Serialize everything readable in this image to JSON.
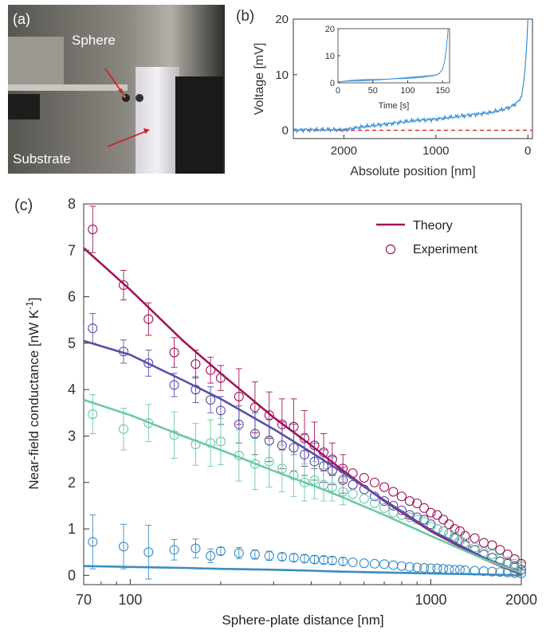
{
  "panel_a": {
    "label": "(a)",
    "sphere_label": "Sphere",
    "substrate_label": "Substrate"
  },
  "panel_b": {
    "label": "(b)",
    "xlabel": "Absolute position [nm]",
    "ylabel": "Voltage [mV]",
    "x_ticks": [
      "2000",
      "1000",
      "0"
    ],
    "y_ticks": [
      "0",
      "10",
      "20"
    ],
    "inset_xlabel": "Time [s]",
    "inset_x_ticks": [
      "0",
      "50",
      "100",
      "150"
    ],
    "inset_y_ticks": [
      "0",
      "10",
      "20"
    ],
    "trace_color": "#3a8fd0",
    "baseline_color": "#d4242e"
  },
  "panel_c": {
    "label": "(c)",
    "xlabel": "Sphere-plate distance [nm]",
    "ylabel": "Near-field conductance [nW K",
    "ylabel_sup": "-1",
    "ylabel_end": "]",
    "x_ticks": [
      "70",
      "100",
      "1000",
      "2000"
    ],
    "y_ticks": [
      "0",
      "1",
      "2",
      "3",
      "4",
      "5",
      "6",
      "7",
      "8"
    ],
    "legend_theory": "Theory",
    "legend_experiment": "Experiment"
  },
  "chart_data": [
    {
      "type": "line",
      "panel": "b",
      "xlabel": "Absolute position [nm]",
      "ylabel": "Voltage [mV]",
      "xlim": [
        2550,
        -50
      ],
      "ylim": [
        -1.5,
        20
      ],
      "x": [
        2550,
        2400,
        2200,
        2000,
        1800,
        1600,
        1400,
        1200,
        1000,
        800,
        600,
        400,
        300,
        200,
        150,
        100,
        70,
        50,
        30,
        10,
        0
      ],
      "y": [
        0,
        0.1,
        0.1,
        0.1,
        0.6,
        1.0,
        1.4,
        1.8,
        2.0,
        2.4,
        2.8,
        3.2,
        3.6,
        4.1,
        4.6,
        5.2,
        6.2,
        8.0,
        11,
        16,
        20
      ],
      "baseline": 0,
      "inset": {
        "xlabel": "Time [s]",
        "xlim": [
          0,
          160
        ],
        "ylim": [
          0,
          20
        ],
        "x": [
          0,
          10,
          20,
          40,
          60,
          80,
          100,
          120,
          140,
          145,
          150,
          153,
          156,
          158
        ],
        "y": [
          0.3,
          0.6,
          0.8,
          1.0,
          1.2,
          1.5,
          1.8,
          2.2,
          2.8,
          3.4,
          5.0,
          8.0,
          14.0,
          20.0
        ]
      }
    },
    {
      "type": "scatter",
      "panel": "c",
      "xlabel": "Sphere-plate distance [nm]",
      "ylabel": "Near-field conductance [nW K-1]",
      "x_scale": "log",
      "xlim": [
        70,
        2000
      ],
      "ylim": [
        -0.2,
        8
      ],
      "series": [
        {
          "name": "Theory",
          "color": "#a0155a",
          "theory_x": [
            70,
            100,
            150,
            200,
            300,
            400,
            500,
            700,
            1000,
            1500,
            2000
          ],
          "theory_y": [
            7.05,
            6.15,
            5.05,
            4.35,
            3.4,
            2.8,
            2.3,
            1.6,
            0.95,
            0.35,
            0.02
          ],
          "exp_x": [
            75,
            95,
            115,
            140,
            165,
            185,
            200,
            230,
            260,
            290,
            320,
            350,
            380,
            410,
            440,
            470,
            510,
            550,
            600,
            650,
            700,
            750,
            800,
            850,
            900,
            950,
            1000,
            1050,
            1100,
            1150,
            1200,
            1250,
            1300,
            1400,
            1500,
            1600,
            1700,
            1800,
            1900,
            2000
          ],
          "exp_y": [
            7.45,
            6.25,
            5.52,
            4.8,
            4.55,
            4.42,
            4.25,
            3.85,
            3.62,
            3.45,
            3.25,
            3.2,
            2.95,
            2.8,
            2.65,
            2.5,
            2.3,
            2.2,
            2.1,
            2.0,
            1.9,
            1.8,
            1.7,
            1.6,
            1.55,
            1.45,
            1.35,
            1.3,
            1.2,
            1.1,
            1.0,
            0.95,
            0.85,
            0.8,
            0.7,
            0.65,
            0.55,
            0.45,
            0.35,
            0.25
          ],
          "exp_err": [
            0.5,
            0.32,
            0.35,
            0.32,
            0.3,
            0.28,
            0.27,
            0.6,
            0.55,
            0.5,
            0.55,
            0.6,
            0.6,
            0.5,
            0.4,
            0.35,
            0.3
          ]
        },
        {
          "name": "",
          "color": "#5a4fa6",
          "theory_x": [
            70,
            100,
            150,
            200,
            300,
            400,
            500,
            700,
            1000,
            1500,
            2000
          ],
          "theory_y": [
            5.05,
            4.75,
            4.2,
            3.8,
            3.15,
            2.65,
            2.25,
            1.62,
            0.97,
            0.38,
            0.05
          ],
          "exp_x": [
            75,
            95,
            115,
            140,
            165,
            185,
            200,
            230,
            260,
            290,
            320,
            350,
            380,
            410,
            440,
            470,
            510,
            550,
            600,
            650,
            700,
            750,
            800,
            850,
            900,
            950,
            1000,
            1050,
            1100,
            1150,
            1200,
            1250,
            1300,
            1400,
            1500,
            1600,
            1700,
            1800,
            1900,
            2000
          ],
          "exp_y": [
            5.32,
            4.82,
            4.57,
            4.1,
            4.0,
            3.78,
            3.55,
            3.25,
            3.05,
            2.9,
            2.8,
            2.75,
            2.6,
            2.45,
            2.35,
            2.25,
            2.05,
            1.95,
            1.85,
            1.7,
            1.6,
            1.5,
            1.4,
            1.3,
            1.25,
            1.2,
            1.1,
            1.0,
            0.95,
            0.9,
            0.8,
            0.75,
            0.65,
            0.55,
            0.45,
            0.38,
            0.3,
            0.25,
            0.2,
            0.12
          ],
          "exp_err": [
            0.32,
            0.25,
            0.28,
            0.25,
            0.28,
            0.28,
            0.3,
            0.4,
            0.45,
            0.45,
            0.5,
            0.5,
            0.45,
            0.4,
            0.35,
            0.3,
            0.28
          ]
        },
        {
          "name": "",
          "color": "#6cc8a8",
          "theory_x": [
            70,
            100,
            150,
            200,
            300,
            400,
            500,
            700,
            1000,
            1500,
            2000
          ],
          "theory_y": [
            3.78,
            3.45,
            3.0,
            2.7,
            2.25,
            1.95,
            1.7,
            1.3,
            0.85,
            0.35,
            0.05
          ],
          "exp_x": [
            75,
            95,
            115,
            140,
            165,
            185,
            200,
            230,
            260,
            290,
            320,
            350,
            380,
            410,
            440,
            470,
            510,
            550,
            600,
            650,
            700,
            750,
            800,
            850,
            900,
            950,
            1000,
            1050,
            1100,
            1150,
            1200,
            1250,
            1300,
            1400,
            1500,
            1600,
            1700,
            1800,
            1900,
            2000
          ],
          "exp_y": [
            3.47,
            3.15,
            3.28,
            3.02,
            2.82,
            2.85,
            2.88,
            2.58,
            2.4,
            2.45,
            2.3,
            2.15,
            2.0,
            2.05,
            1.95,
            1.9,
            1.8,
            1.75,
            1.65,
            1.55,
            1.45,
            1.35,
            1.3,
            1.25,
            1.2,
            1.15,
            1.05,
            1.0,
            0.95,
            0.9,
            0.85,
            0.75,
            0.7,
            0.6,
            0.5,
            0.45,
            0.35,
            0.3,
            0.25,
            0.2
          ],
          "exp_err": [
            0.42,
            0.45,
            0.4,
            0.5,
            0.45,
            0.5,
            0.5,
            0.55,
            0.55,
            0.55,
            0.5,
            0.45,
            0.4,
            0.4,
            0.35,
            0.3,
            0.28
          ]
        },
        {
          "name": "",
          "color": "#3a8cc4",
          "theory_x": [
            70,
            100,
            150,
            200,
            300,
            400,
            500,
            700,
            1000,
            1500,
            2000
          ],
          "theory_y": [
            0.2,
            0.18,
            0.16,
            0.14,
            0.12,
            0.1,
            0.08,
            0.06,
            0.04,
            0.02,
            0.0
          ],
          "exp_x": [
            75,
            95,
            115,
            140,
            165,
            185,
            200,
            230,
            260,
            290,
            320,
            350,
            380,
            410,
            440,
            470,
            510,
            550,
            600,
            650,
            700,
            750,
            800,
            850,
            900,
            950,
            1000,
            1050,
            1100,
            1150,
            1200,
            1250,
            1300,
            1400,
            1500,
            1600,
            1700,
            1800,
            1900,
            2000
          ],
          "exp_y": [
            0.72,
            0.62,
            0.5,
            0.55,
            0.58,
            0.42,
            0.52,
            0.48,
            0.45,
            0.42,
            0.4,
            0.38,
            0.36,
            0.34,
            0.33,
            0.32,
            0.3,
            0.28,
            0.26,
            0.25,
            0.24,
            0.22,
            0.2,
            0.18,
            0.17,
            0.16,
            0.15,
            0.15,
            0.14,
            0.13,
            0.12,
            0.12,
            0.11,
            0.1,
            0.09,
            0.08,
            0.07,
            0.06,
            0.05,
            0.04
          ],
          "exp_err": [
            0.58,
            0.48,
            0.58,
            0.22,
            0.2,
            0.15,
            0.08,
            0.12,
            0.1,
            0.1,
            0.08,
            0.08,
            0.08,
            0.08,
            0.08,
            0.08,
            0.08
          ]
        }
      ]
    }
  ]
}
